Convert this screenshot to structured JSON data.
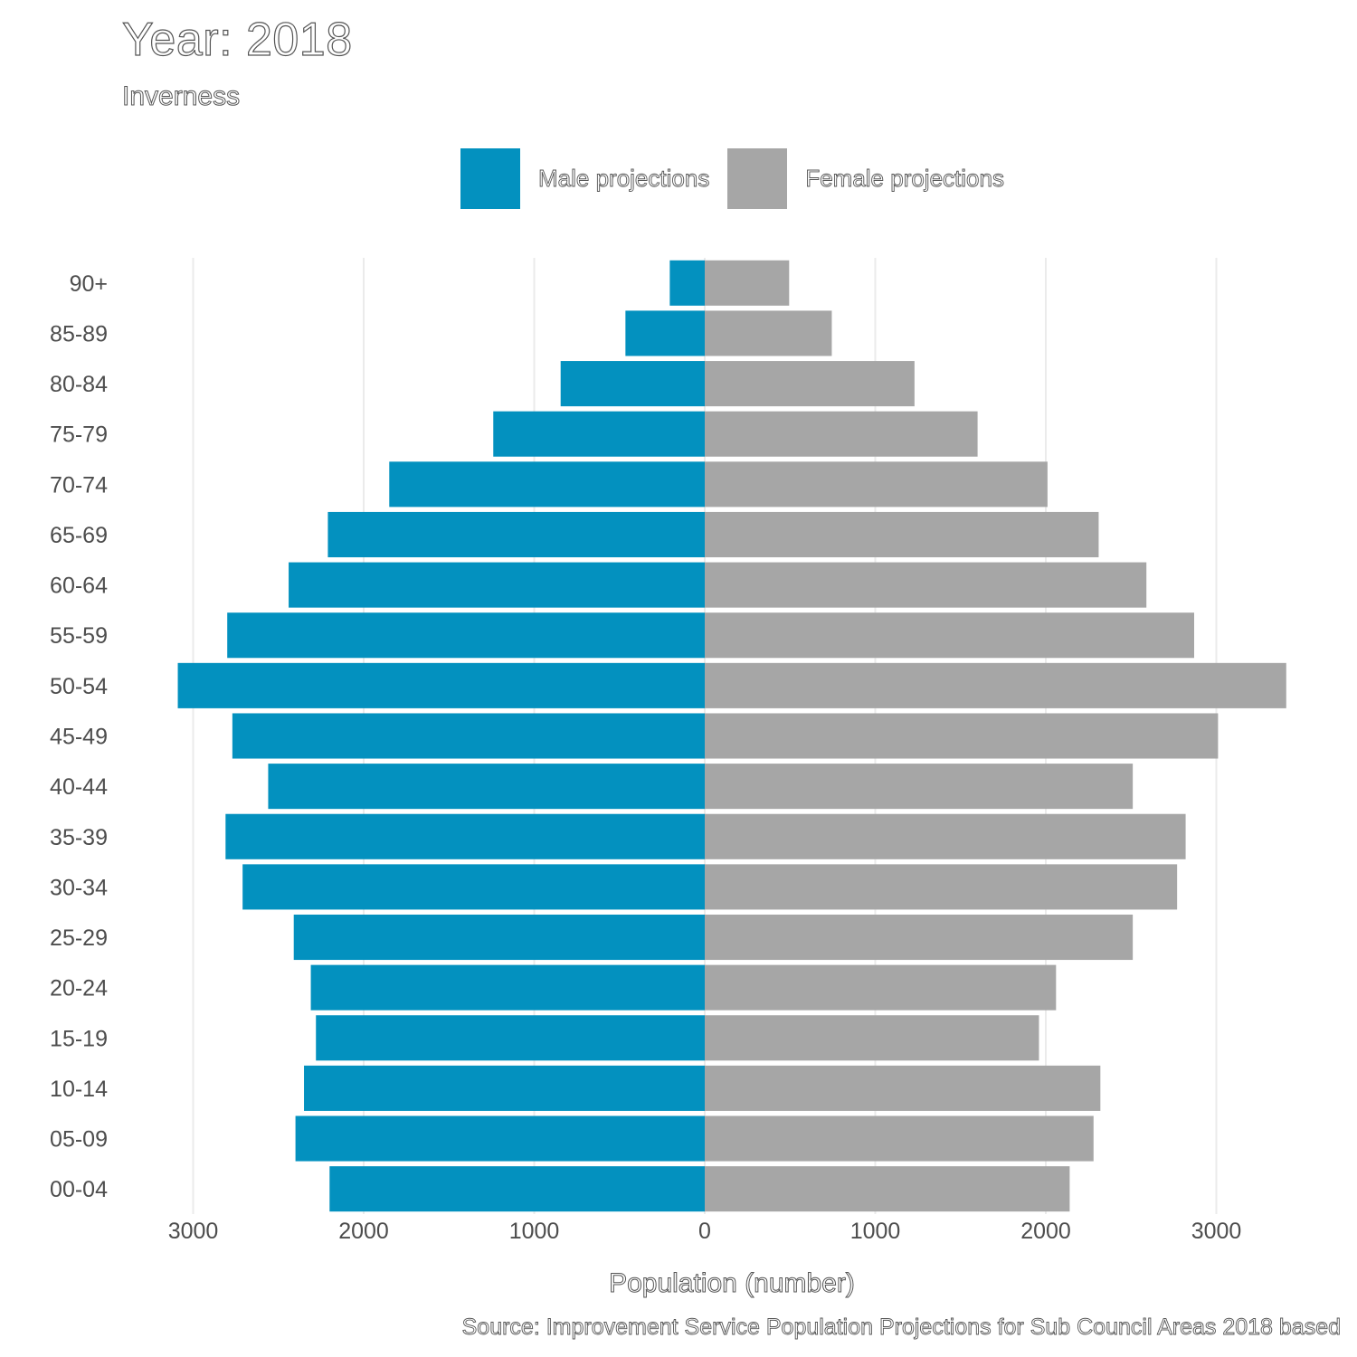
{
  "chart_data": {
    "type": "bar",
    "orientation": "horizontal-pyramid",
    "title": "Year: 2018",
    "subtitle": "Inverness",
    "xlabel": "Population (number)",
    "ylabel": "",
    "source": "Source: Improvement Service Population Projections for Sub Council Areas 2018 based",
    "categories": [
      "90+",
      "85-89",
      "80-84",
      "75-79",
      "70-74",
      "65-69",
      "60-64",
      "55-59",
      "50-54",
      "45-49",
      "40-44",
      "35-39",
      "30-34",
      "25-29",
      "20-24",
      "15-19",
      "10-14",
      "05-09",
      "00-04"
    ],
    "series": [
      {
        "name": "Male projections",
        "color": "#0391bf",
        "values": [
          205,
          465,
          845,
          1240,
          1850,
          2210,
          2440,
          2800,
          3090,
          2770,
          2560,
          2810,
          2710,
          2410,
          2310,
          2280,
          2350,
          2400,
          2200
        ]
      },
      {
        "name": "Female projections",
        "color": "#a6a6a6",
        "values": [
          495,
          745,
          1230,
          1600,
          2010,
          2310,
          2590,
          2870,
          3410,
          3010,
          2510,
          2820,
          2770,
          2510,
          2060,
          1960,
          2320,
          2280,
          2140
        ]
      }
    ],
    "xticks": [
      -3000,
      -2000,
      -1000,
      0,
      1000,
      2000,
      3000
    ],
    "xtick_labels": [
      "3000",
      "2000",
      "1000",
      "0",
      "1000",
      "2000",
      "3000"
    ],
    "xlim": [
      -3300,
      3550
    ],
    "grid": true,
    "legend_position": "top"
  }
}
